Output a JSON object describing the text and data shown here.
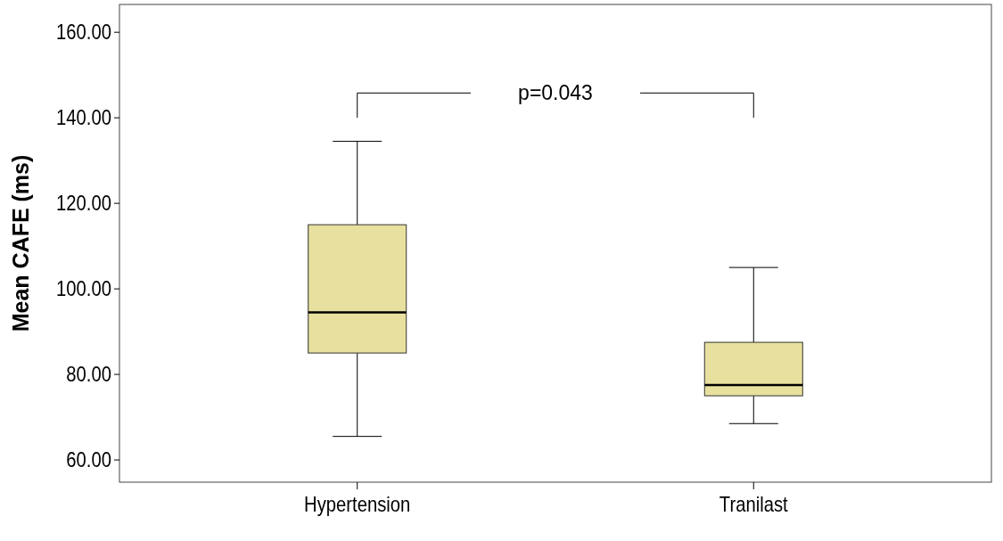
{
  "chart_data": {
    "type": "box",
    "ylabel": "Mean CAFE (ms)",
    "categories": [
      "Hypertension",
      "Tranilast"
    ],
    "boxes": [
      {
        "low": 65.5,
        "q1": 85,
        "median": 94.5,
        "q3": 115,
        "high": 134.5
      },
      {
        "low": 68.5,
        "q1": 75,
        "median": 77.5,
        "q3": 87.5,
        "high": 105
      }
    ],
    "color": "#e8e09e",
    "ylim": [
      54.8,
      166.5
    ],
    "yticks": [
      {
        "value": 60,
        "label": "60.00"
      },
      {
        "value": 80,
        "label": "80.00"
      },
      {
        "value": 100,
        "label": "100.00"
      },
      {
        "value": 120,
        "label": "120.00"
      },
      {
        "value": 140,
        "label": "140.00"
      },
      {
        "value": 160,
        "label": "160.00"
      }
    ],
    "annotations": [
      "p=0.043"
    ],
    "grid": false
  }
}
